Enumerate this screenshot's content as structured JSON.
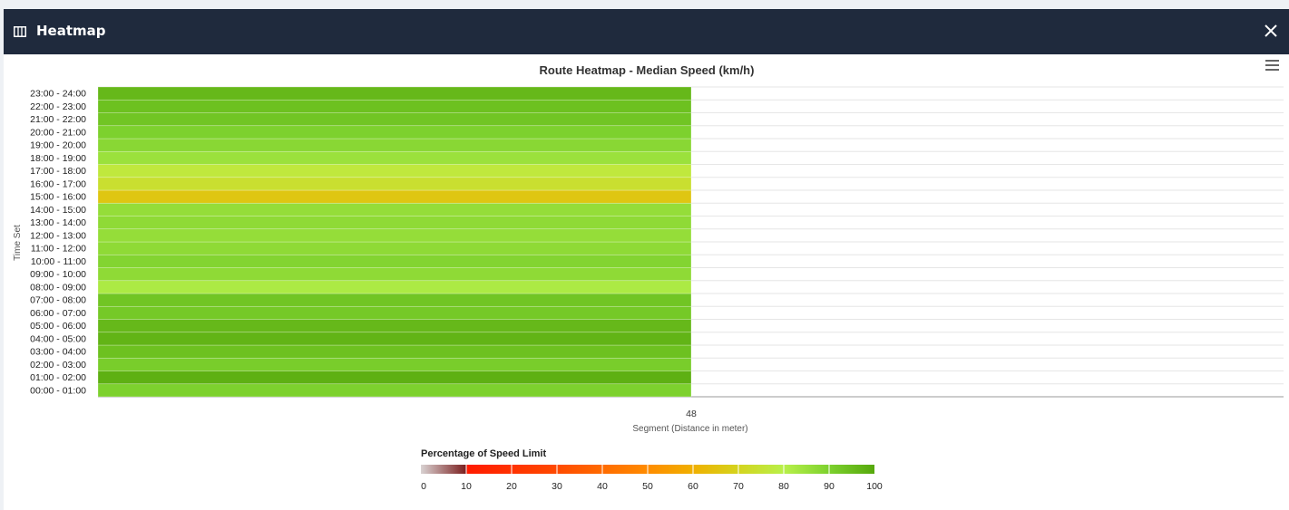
{
  "window": {
    "title": "Heatmap"
  },
  "icons": {
    "header_icon": "columns-icon",
    "close": "close-icon",
    "menu": "hamburger-menu-icon"
  },
  "chart_data": {
    "type": "heatmap",
    "title": "Route Heatmap - Median Speed (km/h)",
    "xlabel": "Segment (Distance in meter)",
    "ylabel": "Time Set",
    "x_categories": [
      "48"
    ],
    "y_categories": [
      "00:00 - 01:00",
      "01:00 - 02:00",
      "02:00 - 03:00",
      "03:00 - 04:00",
      "04:00 - 05:00",
      "05:00 - 06:00",
      "06:00 - 07:00",
      "07:00 - 08:00",
      "08:00 - 09:00",
      "09:00 - 10:00",
      "10:00 - 11:00",
      "11:00 - 12:00",
      "12:00 - 13:00",
      "13:00 - 14:00",
      "14:00 - 15:00",
      "15:00 - 16:00",
      "16:00 - 17:00",
      "17:00 - 18:00",
      "18:00 - 19:00",
      "19:00 - 20:00",
      "20:00 - 21:00",
      "21:00 - 22:00",
      "22:00 - 23:00",
      "23:00 - 24:00"
    ],
    "values": [
      90,
      98,
      91,
      94,
      97,
      96,
      92,
      93,
      82,
      87,
      89,
      87,
      86,
      87,
      86,
      66,
      74,
      77,
      85,
      88,
      90,
      93,
      94,
      96
    ],
    "legend": {
      "title": "Percentage of Speed Limit",
      "ticks": [
        "0",
        "10",
        "20",
        "30",
        "40",
        "50",
        "60",
        "70",
        "80",
        "90",
        "100"
      ],
      "stops": [
        {
          "value": 0,
          "color": "#d9d2d2"
        },
        {
          "value": 10,
          "color": "#7a1e1e"
        },
        {
          "value": 10.01,
          "color": "#ff1a00"
        },
        {
          "value": 30,
          "color": "#ff4a00"
        },
        {
          "value": 50,
          "color": "#ff8c00"
        },
        {
          "value": 60,
          "color": "#f0b000"
        },
        {
          "value": 70,
          "color": "#d4d41e"
        },
        {
          "value": 80,
          "color": "#b8f04a"
        },
        {
          "value": 90,
          "color": "#7dd12e"
        },
        {
          "value": 100,
          "color": "#56a80c"
        }
      ]
    }
  }
}
